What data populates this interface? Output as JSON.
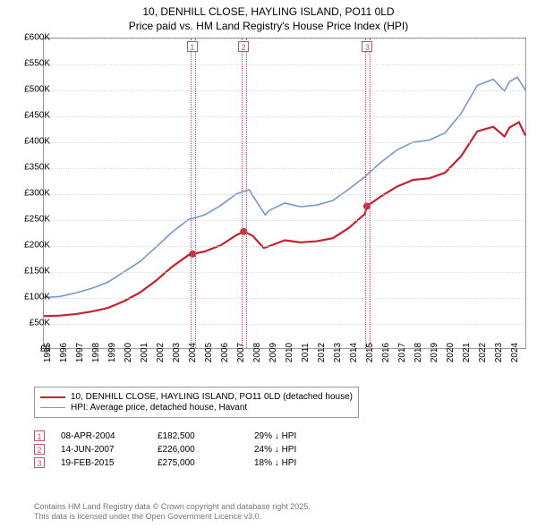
{
  "title": {
    "line1": "10, DENHILL CLOSE, HAYLING ISLAND, PO11 0LD",
    "line2": "Price paid vs. HM Land Registry's House Price Index (HPI)",
    "fontsize": 12,
    "color": "#000000"
  },
  "chart": {
    "type": "line",
    "background_color": "#ffffff",
    "grid_color": "#dddddd",
    "border_color": "#999999",
    "xlim_years": [
      1995,
      2025
    ],
    "ylim": [
      0,
      600000
    ],
    "ytick_step": 50000,
    "ytick_labels": [
      "£0",
      "£50K",
      "£100K",
      "£150K",
      "£200K",
      "£250K",
      "£300K",
      "£350K",
      "£400K",
      "£450K",
      "£500K",
      "£550K",
      "£600K"
    ],
    "xtick_years": [
      1995,
      1996,
      1997,
      1998,
      1999,
      2000,
      2001,
      2002,
      2003,
      2004,
      2005,
      2006,
      2007,
      2008,
      2009,
      2010,
      2011,
      2012,
      2013,
      2014,
      2015,
      2016,
      2017,
      2018,
      2019,
      2020,
      2021,
      2022,
      2023,
      2024
    ],
    "series": [
      {
        "name": "property",
        "label": "10, DENHILL CLOSE, HAYLING ISLAND, PO11 0LD (detached house)",
        "color": "#c62031",
        "line_width": 2.2,
        "data": [
          [
            1995,
            62000
          ],
          [
            1996,
            63000
          ],
          [
            1997,
            66000
          ],
          [
            1998,
            71000
          ],
          [
            1999,
            78000
          ],
          [
            2000,
            91000
          ],
          [
            2001,
            108000
          ],
          [
            2002,
            131000
          ],
          [
            2003,
            158000
          ],
          [
            2004,
            180000
          ],
          [
            2004.27,
            182500
          ],
          [
            2005,
            187000
          ],
          [
            2006,
            199000
          ],
          [
            2007,
            219000
          ],
          [
            2007.45,
            226000
          ],
          [
            2008,
            218000
          ],
          [
            2008.7,
            194000
          ],
          [
            2009,
            197000
          ],
          [
            2010,
            209000
          ],
          [
            2011,
            205000
          ],
          [
            2012,
            207000
          ],
          [
            2013,
            213000
          ],
          [
            2014,
            233000
          ],
          [
            2015,
            260000
          ],
          [
            2015.13,
            275000
          ],
          [
            2016,
            294000
          ],
          [
            2017,
            313000
          ],
          [
            2018,
            326000
          ],
          [
            2019,
            329000
          ],
          [
            2020,
            340000
          ],
          [
            2021,
            372000
          ],
          [
            2022,
            420000
          ],
          [
            2023,
            429000
          ],
          [
            2023.7,
            410000
          ],
          [
            2024,
            427000
          ],
          [
            2024.6,
            438000
          ],
          [
            2025,
            412000
          ]
        ]
      },
      {
        "name": "hpi",
        "label": "HPI: Average price, detached house, Havant",
        "color": "#7a96c9",
        "line_width": 1.6,
        "data": [
          [
            1995,
            98000
          ],
          [
            1996,
            100000
          ],
          [
            1997,
            107000
          ],
          [
            1998,
            116000
          ],
          [
            1999,
            128000
          ],
          [
            2000,
            148000
          ],
          [
            2001,
            168000
          ],
          [
            2002,
            196000
          ],
          [
            2003,
            225000
          ],
          [
            2004,
            249000
          ],
          [
            2005,
            258000
          ],
          [
            2006,
            276000
          ],
          [
            2007,
            299000
          ],
          [
            2007.8,
            307000
          ],
          [
            2008,
            296000
          ],
          [
            2008.8,
            258000
          ],
          [
            2009,
            266000
          ],
          [
            2010,
            281000
          ],
          [
            2011,
            274000
          ],
          [
            2012,
            277000
          ],
          [
            2013,
            286000
          ],
          [
            2014,
            308000
          ],
          [
            2015,
            332000
          ],
          [
            2016,
            360000
          ],
          [
            2017,
            384000
          ],
          [
            2018,
            399000
          ],
          [
            2019,
            403000
          ],
          [
            2020,
            417000
          ],
          [
            2021,
            455000
          ],
          [
            2022,
            509000
          ],
          [
            2023,
            521000
          ],
          [
            2023.7,
            498000
          ],
          [
            2024,
            516000
          ],
          [
            2024.5,
            525000
          ],
          [
            2025,
            500000
          ]
        ]
      }
    ],
    "markers": [
      {
        "id": "1",
        "year": 2004.27,
        "box_color": "#c8506e",
        "band_color": "rgba(180,180,220,0.15)"
      },
      {
        "id": "2",
        "year": 2007.45,
        "box_color": "#c8506e",
        "band_color": "rgba(180,180,220,0.15)"
      },
      {
        "id": "3",
        "year": 2015.13,
        "box_color": "#c8506e",
        "band_color": "rgba(180,180,220,0.15)"
      }
    ],
    "sale_points": [
      {
        "year": 2004.27,
        "price": 182500
      },
      {
        "year": 2007.45,
        "price": 226000
      },
      {
        "year": 2015.13,
        "price": 275000
      }
    ]
  },
  "legend": {
    "border_color": "#999999",
    "items": [
      {
        "color": "#c62031",
        "width": 2.2,
        "label": "10, DENHILL CLOSE, HAYLING ISLAND, PO11 0LD (detached house)"
      },
      {
        "color": "#7a96c9",
        "width": 1.6,
        "label": "HPI: Average price, detached house, Havant"
      }
    ]
  },
  "sales_table": {
    "rows": [
      {
        "marker": "1",
        "date": "08-APR-2004",
        "price": "£182,500",
        "delta": "29% ↓ HPI"
      },
      {
        "marker": "2",
        "date": "14-JUN-2007",
        "price": "£226,000",
        "delta": "24% ↓ HPI"
      },
      {
        "marker": "3",
        "date": "19-FEB-2015",
        "price": "£275,000",
        "delta": "18% ↓ HPI"
      }
    ]
  },
  "footer": {
    "line1": "Contains HM Land Registry data © Crown copyright and database right 2025.",
    "line2": "This data is licensed under the Open Government Licence v3.0.",
    "color": "#777777"
  }
}
